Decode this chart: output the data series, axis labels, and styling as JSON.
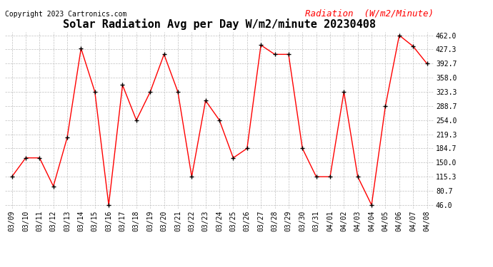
{
  "title": "Solar Radiation Avg per Day W/m2/minute 20230408",
  "copyright": "Copyright 2023 Cartronics.com",
  "legend_label": "Radiation  (W/m2/Minute)",
  "dates": [
    "03/09",
    "03/10",
    "03/11",
    "03/12",
    "03/13",
    "03/14",
    "03/15",
    "03/16",
    "03/17",
    "03/18",
    "03/19",
    "03/20",
    "03/21",
    "03/22",
    "03/23",
    "03/24",
    "03/25",
    "03/26",
    "03/27",
    "03/28",
    "03/29",
    "03/30",
    "03/31",
    "04/01",
    "04/02",
    "04/03",
    "04/04",
    "04/05",
    "04/06",
    "04/07",
    "04/08"
  ],
  "values": [
    115.3,
    161.5,
    161.5,
    92.0,
    211.3,
    430.0,
    323.3,
    46.0,
    340.0,
    254.0,
    323.3,
    415.3,
    323.3,
    115.3,
    302.0,
    254.0,
    161.5,
    184.7,
    438.0,
    415.3,
    415.3,
    184.7,
    115.3,
    115.3,
    323.3,
    115.3,
    46.0,
    288.7,
    462.0,
    435.0,
    392.7
  ],
  "ymin": 46.0,
  "ymax": 462.0,
  "yticks": [
    46.0,
    80.7,
    115.3,
    150.0,
    184.7,
    219.3,
    254.0,
    288.7,
    323.3,
    358.0,
    392.7,
    427.3,
    462.0
  ],
  "line_color": "red",
  "marker_color": "black",
  "bg_color": "white",
  "grid_color": "#c0c0c0",
  "title_fontsize": 11,
  "copyright_fontsize": 7,
  "legend_fontsize": 9,
  "tick_fontsize": 7
}
